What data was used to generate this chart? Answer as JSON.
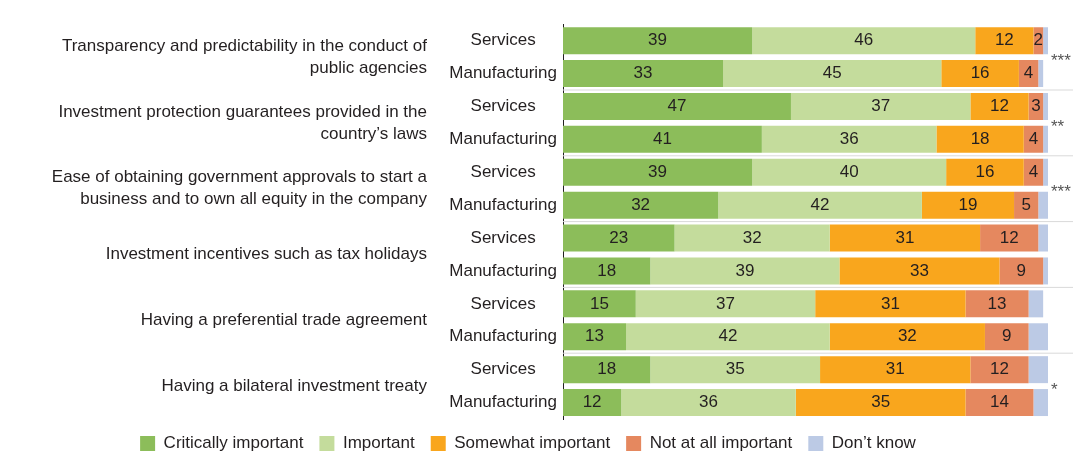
{
  "chart_data": {
    "type": "bar",
    "orientation": "horizontal",
    "stacked": true,
    "legend": "bottom",
    "grid": false,
    "categories": [
      "Services",
      "Manufacturing",
      "Services",
      "Manufacturing",
      "Services",
      "Manufacturing",
      "Services",
      "Manufacturing",
      "Services",
      "Manufacturing",
      "Services",
      "Manufacturing"
    ],
    "series": [
      {
        "name": "Critically important",
        "color": "#8cbd5a",
        "values": [
          39,
          33,
          47,
          41,
          39,
          32,
          23,
          18,
          15,
          13,
          18,
          12
        ],
        "value_labels": [
          "39",
          "33",
          "47",
          "41",
          "39",
          "32",
          "23",
          "18",
          "15",
          "13",
          "18",
          "12"
        ]
      },
      {
        "name": "Important",
        "color": "#c4dc9c",
        "values": [
          46,
          45,
          37,
          36,
          40,
          42,
          32,
          39,
          37,
          42,
          35,
          36
        ],
        "value_labels": [
          "46",
          "45",
          "37",
          "36",
          "40",
          "42",
          "32",
          "39",
          "37",
          "42",
          "35",
          "36"
        ]
      },
      {
        "name": "Somewhat important",
        "color": "#f9a61d",
        "values": [
          12,
          16,
          12,
          18,
          16,
          19,
          31,
          33,
          31,
          32,
          31,
          35
        ],
        "value_labels": [
          "12",
          "16",
          "12",
          "18",
          "16",
          "19",
          "31",
          "33",
          "31",
          "32",
          "31",
          "35"
        ]
      },
      {
        "name": "Not at all important",
        "color": "#e5885f",
        "values": [
          2,
          4,
          3,
          4,
          4,
          5,
          12,
          9,
          13,
          9,
          12,
          14
        ],
        "value_labels": [
          "2",
          "4",
          "3",
          "4",
          "4",
          "5",
          "12",
          "9",
          "13",
          "9",
          "12",
          "14"
        ]
      },
      {
        "name": "Don’t know",
        "color": "#bccae5",
        "values": [
          1,
          1,
          1,
          1,
          1,
          2,
          2,
          1,
          3,
          4,
          4,
          3
        ]
      }
    ],
    "annotations": [
      "Transparency and predictability in the conduct of public agencies",
      {
        "text": "***"
      },
      "Investment protection guarantees provided in the country’s laws",
      {
        "text": "**"
      },
      "Ease of obtaining government approvals to start a business and to own all equity in the company",
      {
        "text": "***"
      },
      "Investment incentives such as tax holidays",
      "Having a preferential trade agreement",
      "Having a bilateral investment treaty",
      {
        "text": "*"
      }
    ]
  }
}
